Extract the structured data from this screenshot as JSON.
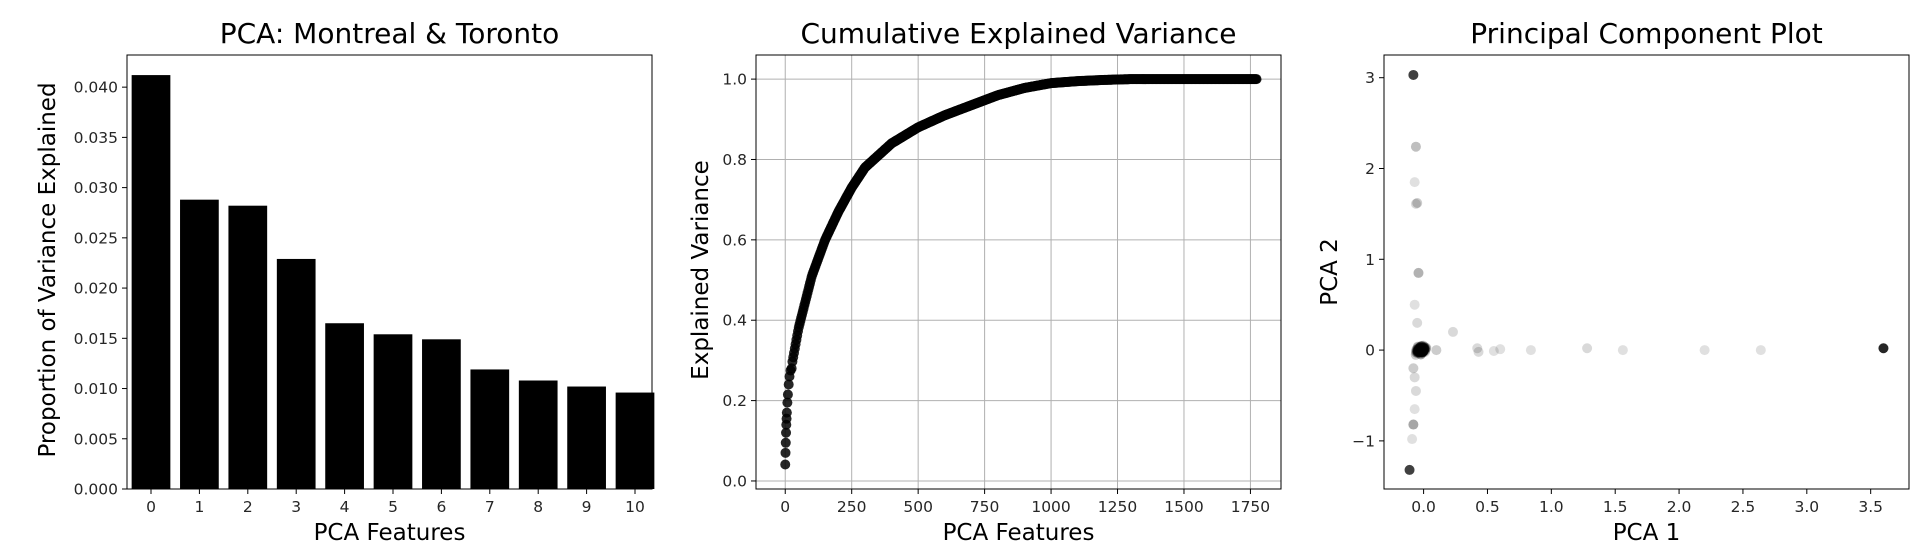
{
  "chart_data": [
    {
      "type": "bar",
      "title": "PCA: Montreal & Toronto",
      "xlabel": "PCA Features",
      "ylabel": "Proportion of Variance Explained",
      "categories": [
        "0",
        "1",
        "2",
        "3",
        "4",
        "5",
        "6",
        "7",
        "8",
        "9",
        "10"
      ],
      "values": [
        0.0412,
        0.0288,
        0.0282,
        0.0229,
        0.0165,
        0.0154,
        0.0149,
        0.0119,
        0.0108,
        0.0102,
        0.0096
      ],
      "ylim": [
        0,
        0.0432
      ],
      "yticks": [
        "0.000",
        "0.005",
        "0.010",
        "0.015",
        "0.020",
        "0.025",
        "0.030",
        "0.035",
        "0.040"
      ],
      "grid": false,
      "bar_color": "#000000"
    },
    {
      "type": "scatter",
      "title": "Cumulative Explained Variance",
      "xlabel": "PCA Features",
      "ylabel": "Explained Variance",
      "n_points": 1776,
      "x_range": [
        0,
        1775
      ],
      "y_range": [
        0.041,
        1.0
      ],
      "curve_samples": {
        "x": [
          0,
          25,
          50,
          100,
          150,
          200,
          250,
          300,
          350,
          400,
          500,
          600,
          700,
          800,
          900,
          1000,
          1100,
          1200,
          1300,
          1500,
          1775
        ],
        "y": [
          0.041,
          0.29,
          0.38,
          0.51,
          0.6,
          0.67,
          0.73,
          0.78,
          0.81,
          0.84,
          0.88,
          0.91,
          0.935,
          0.96,
          0.978,
          0.99,
          0.995,
          0.998,
          1.0,
          1.0,
          1.0
        ]
      },
      "xlim": [
        -110,
        1865
      ],
      "ylim": [
        -0.02,
        1.06
      ],
      "xticks": [
        0,
        250,
        500,
        750,
        1000,
        1250,
        1500,
        1750
      ],
      "yticks": [
        0.0,
        0.2,
        0.4,
        0.6,
        0.8,
        1.0
      ],
      "grid": true,
      "marker_color": "#000000"
    },
    {
      "type": "scatter",
      "title": "Principal Component Plot",
      "xlabel": "PCA 1",
      "ylabel": "PCA 2",
      "points": [
        {
          "x": -0.08,
          "y": 3.03,
          "alpha": 0.75
        },
        {
          "x": -0.06,
          "y": 2.24,
          "alpha": 0.25
        },
        {
          "x": -0.07,
          "y": 1.85,
          "alpha": 0.12
        },
        {
          "x": -0.05,
          "y": 1.62,
          "alpha": 0.2
        },
        {
          "x": -0.06,
          "y": 1.61,
          "alpha": 0.15
        },
        {
          "x": -0.04,
          "y": 0.85,
          "alpha": 0.3
        },
        {
          "x": -0.07,
          "y": 0.5,
          "alpha": 0.12
        },
        {
          "x": -0.05,
          "y": 0.3,
          "alpha": 0.15
        },
        {
          "x": -0.08,
          "y": -0.2,
          "alpha": 0.2
        },
        {
          "x": -0.07,
          "y": -0.3,
          "alpha": 0.15
        },
        {
          "x": -0.06,
          "y": -0.45,
          "alpha": 0.15
        },
        {
          "x": -0.07,
          "y": -0.65,
          "alpha": 0.12
        },
        {
          "x": -0.08,
          "y": -0.82,
          "alpha": 0.35
        },
        {
          "x": -0.09,
          "y": -0.98,
          "alpha": 0.12
        },
        {
          "x": -0.11,
          "y": -1.32,
          "alpha": 0.75
        },
        {
          "x": 0.23,
          "y": 0.2,
          "alpha": 0.15
        },
        {
          "x": 0.1,
          "y": 0.0,
          "alpha": 0.2
        },
        {
          "x": 0.42,
          "y": 0.02,
          "alpha": 0.15
        },
        {
          "x": 0.43,
          "y": -0.02,
          "alpha": 0.15
        },
        {
          "x": 0.55,
          "y": -0.01,
          "alpha": 0.12
        },
        {
          "x": 0.6,
          "y": 0.01,
          "alpha": 0.12
        },
        {
          "x": 0.84,
          "y": 0.0,
          "alpha": 0.12
        },
        {
          "x": 1.28,
          "y": 0.02,
          "alpha": 0.15
        },
        {
          "x": 1.56,
          "y": 0.0,
          "alpha": 0.12
        },
        {
          "x": 2.2,
          "y": 0.0,
          "alpha": 0.12
        },
        {
          "x": 2.64,
          "y": 0.0,
          "alpha": 0.12
        },
        {
          "x": 3.6,
          "y": 0.02,
          "alpha": 0.85
        }
      ],
      "core_cluster": {
        "x_center": -0.02,
        "y_center": 0.0,
        "spread_x": 0.05,
        "spread_y": 0.06,
        "count": 140,
        "alpha": 0.2
      },
      "xlim": [
        -0.31,
        3.8
      ],
      "ylim": [
        -1.53,
        3.25
      ],
      "xticks": [
        "0.0",
        "0.5",
        "1.0",
        "1.5",
        "2.0",
        "2.5",
        "3.0",
        "3.5"
      ],
      "yticks": [
        "−1",
        "0",
        "1",
        "2",
        "3"
      ],
      "grid": false,
      "marker_color": "#000000"
    }
  ]
}
